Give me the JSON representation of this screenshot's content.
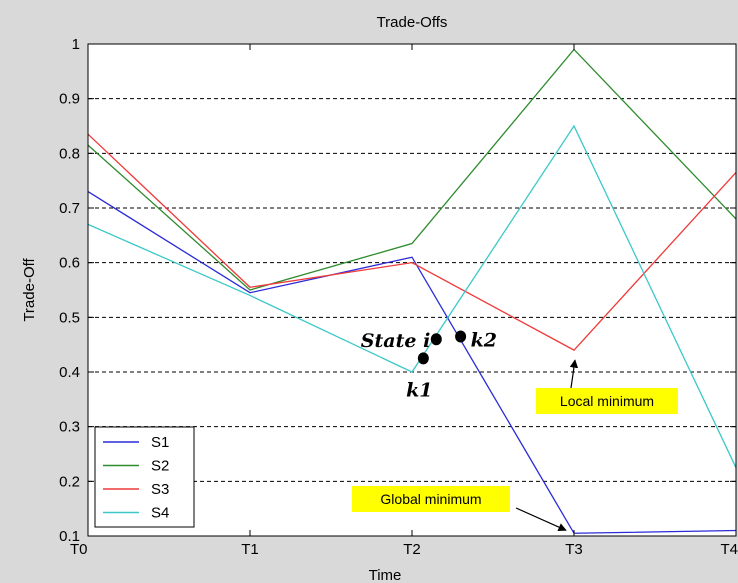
{
  "chart_data": {
    "type": "line",
    "title": "Trade-Offs",
    "xlabel": "Time",
    "ylabel": "Trade-Off",
    "categories": [
      "T0",
      "T1",
      "T2",
      "T3",
      "T4"
    ],
    "ylim": [
      0.1,
      1
    ],
    "yticks": [
      0.1,
      0.2,
      0.3,
      0.4,
      0.5,
      0.6,
      0.7,
      0.8,
      0.9,
      1
    ],
    "ytick_labels": [
      "0.1",
      "0.2",
      "0.3",
      "0.4",
      "0.5",
      "0.6",
      "0.7",
      "0.8",
      "0.9",
      "1"
    ],
    "grid": "horizontal-dashed",
    "legend_position": "bottom-left",
    "series": [
      {
        "name": "S1",
        "color": "#2b2bd9",
        "values": [
          0.73,
          0.545,
          0.61,
          0.105,
          0.11
        ]
      },
      {
        "name": "S2",
        "color": "#2e8b2e",
        "values": [
          0.815,
          0.55,
          0.635,
          0.99,
          0.68
        ]
      },
      {
        "name": "S3",
        "color": "#ee3a3a",
        "values": [
          0.835,
          0.555,
          0.6,
          0.44,
          0.765
        ]
      },
      {
        "name": "S4",
        "color": "#3cc8c8",
        "values": [
          0.67,
          0.54,
          0.4,
          0.85,
          0.225
        ]
      }
    ],
    "points": [
      {
        "label": "State i",
        "x": 2.15,
        "y": 0.46
      },
      {
        "label": "k1",
        "x": 2.07,
        "y": 0.425
      },
      {
        "label": "k2",
        "x": 2.3,
        "y": 0.465
      }
    ],
    "annotations": [
      {
        "text": "Local minimum",
        "target_x": 3,
        "target_y": 0.44
      },
      {
        "text": "Global minimum",
        "target_x": 3,
        "target_y": 0.105
      }
    ]
  }
}
